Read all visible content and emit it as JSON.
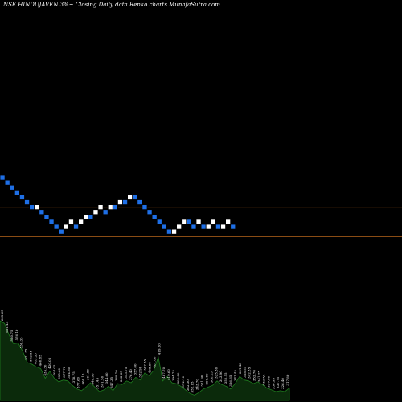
{
  "title": "NSE HINDUJAVEN  3%~  Closing Daily data  Renko  charts MunafaSutra.com",
  "colors": {
    "background": "#000000",
    "up_brick": "#ffffff",
    "down_brick": "#1e6fe6",
    "brick_border": "#000000",
    "reference_line": "#b8651a",
    "volume_fill": "#0b2a0b",
    "volume_stroke": "#1e7a1e",
    "label": "#ffffff"
  },
  "chart_data": {
    "type": "renko",
    "brick_levels": [
      0,
      1,
      2,
      3,
      4,
      5,
      6,
      6,
      7,
      8,
      9,
      10,
      11,
      10,
      9,
      10,
      9,
      8,
      8,
      7,
      6,
      7,
      6,
      6,
      5,
      5,
      4,
      4,
      5,
      6,
      7,
      8,
      9,
      10,
      11,
      11,
      10,
      9,
      9,
      10,
      9,
      10,
      10,
      9,
      10,
      10,
      9,
      10
    ],
    "brick_directions": [
      "down",
      "down",
      "down",
      "down",
      "down",
      "down",
      "down",
      "up",
      "down",
      "down",
      "down",
      "down",
      "down",
      "up",
      "up",
      "down",
      "up",
      "up",
      "down",
      "up",
      "up",
      "down",
      "up",
      "down",
      "up",
      "down",
      "up",
      "down",
      "down",
      "down",
      "down",
      "down",
      "down",
      "down",
      "down",
      "up",
      "up",
      "up",
      "down",
      "down",
      "up",
      "down",
      "up",
      "up",
      "down",
      "up",
      "up",
      "down"
    ],
    "reference_levels": [
      6.5,
      12.5
    ],
    "volume": [
      9,
      8.7,
      7.4,
      6.4,
      6.5,
      5.6,
      4.3,
      4.1,
      3.8,
      3.6,
      2.5,
      3.3,
      2.5,
      2.1,
      2.3,
      2.2,
      1.7,
      1.3,
      1.1,
      1.5,
      2.0,
      1.5,
      1.0,
      1.2,
      1.6,
      1.1,
      1.9,
      1.8,
      2.2,
      2.0,
      2.6,
      2.3,
      3.1,
      2.8,
      3.4,
      4.9,
      2.2,
      2.7,
      2.0,
      1.9,
      1.6,
      1.2,
      0.8,
      0.6,
      0.9,
      1.3,
      1.5,
      1.7,
      2.2,
      1.8,
      1.6,
      1.3,
      1.9,
      2.7,
      2.3,
      2.2,
      1.9,
      2.1,
      1.8,
      1.4,
      1.2,
      1.0,
      1.1,
      1.0,
      1.4
    ],
    "volume_labels": [
      "635.65",
      "621.45",
      "580.75",
      "576.10",
      "536.35",
      "521.35",
      "502.55",
      "485.30",
      "460.85",
      "435.30",
      "420.05",
      "404.05",
      "395.60",
      "377.70",
      "384.30",
      "378.75",
      "377.60",
      "366.15",
      "361.50",
      "346.95",
      "351.45",
      "341.50",
      "344.60",
      "347.35",
      "368.10",
      "362.35",
      "353.75",
      "376.40",
      "357.00",
      "382.90",
      "387.55",
      "408.50",
      "401.00",
      "419.20",
      "407.70",
      "419.60",
      "394.75",
      "380.00",
      "372.10",
      "362.30",
      "352.15",
      "343.70",
      "321.90",
      "296.80",
      "308.25",
      "325.80",
      "343.90",
      "352.55",
      "356.35",
      "341.45",
      "331.40",
      "328.55",
      "342.85",
      "352.70",
      "341.25",
      "332.55",
      "337.90",
      "350.95",
      "337.75",
      "326.40",
      "317.80"
    ]
  }
}
